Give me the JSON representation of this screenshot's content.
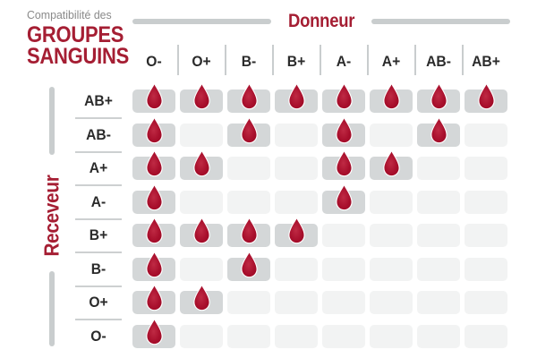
{
  "title": {
    "kicker": "Compatibilité des",
    "line1": "GROUPES",
    "line2": "SANGUINS"
  },
  "chart_data": {
    "type": "heatmap",
    "title": "Compatibilité des GROUPES SANGUINS",
    "columns_label": "Donneur",
    "rows_label": "Receveur",
    "columns": [
      "O-",
      "O+",
      "B-",
      "B+",
      "A-",
      "A+",
      "AB-",
      "AB+"
    ],
    "rows": [
      "AB+",
      "AB-",
      "A+",
      "A-",
      "B+",
      "B-",
      "O+",
      "O-"
    ],
    "matrix": [
      [
        1,
        1,
        1,
        1,
        1,
        1,
        1,
        1
      ],
      [
        1,
        0,
        1,
        0,
        1,
        0,
        1,
        0
      ],
      [
        1,
        1,
        0,
        0,
        1,
        1,
        0,
        0
      ],
      [
        1,
        0,
        0,
        0,
        1,
        0,
        0,
        0
      ],
      [
        1,
        1,
        1,
        1,
        0,
        0,
        0,
        0
      ],
      [
        1,
        0,
        1,
        0,
        0,
        0,
        0,
        0
      ],
      [
        1,
        1,
        0,
        0,
        0,
        0,
        0,
        0
      ],
      [
        1,
        0,
        0,
        0,
        0,
        0,
        0,
        0
      ]
    ],
    "cell_marker": "blood-drop-icon",
    "legend_position": "none",
    "grid": "off"
  },
  "colors": {
    "brand_red": "#A51E33",
    "drop_red": "#A30F2B",
    "drop_red_light": "#BF2A44",
    "cell_filled": "#D4D7D8",
    "cell_empty": "#F2F3F3",
    "bar_gray": "#C9CDCE",
    "separator_gray": "#CDD0D1",
    "label_dark": "#2B2B2B",
    "kicker_gray": "#8A8A8A"
  }
}
